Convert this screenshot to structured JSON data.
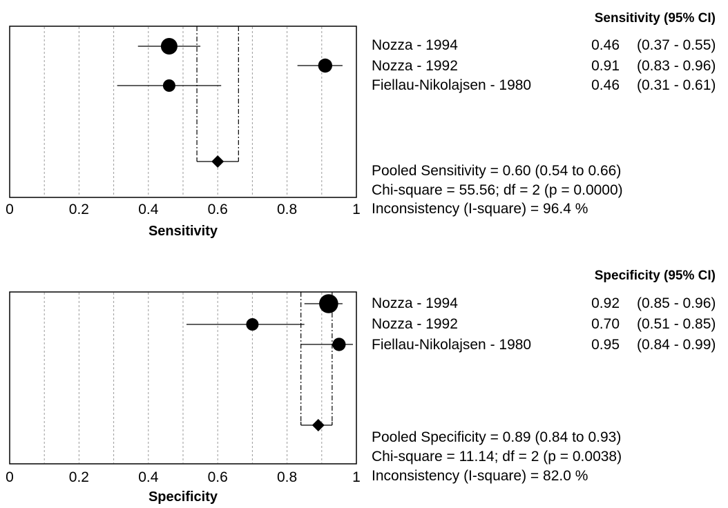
{
  "chart_data": [
    {
      "type": "forest",
      "title": "",
      "xlabel": "Sensitivity",
      "xlim": [
        0,
        1
      ],
      "xticks": [
        "0",
        "0.2",
        "0.4",
        "0.6",
        "0.8",
        "1"
      ],
      "column_header": "Sensitivity (95% CI)",
      "studies": [
        {
          "name": "Nozza - 1994",
          "estimate": 0.46,
          "estimate_label": "0.46",
          "ci": [
            0.37,
            0.55
          ],
          "ci_label": "(0.37 - 0.55)",
          "weight": 1.0
        },
        {
          "name": "Nozza - 1992",
          "estimate": 0.91,
          "estimate_label": "0.91",
          "ci": [
            0.83,
            0.96
          ],
          "ci_label": "(0.83 - 0.96)",
          "weight": 0.85
        },
        {
          "name": "Fiellau-Nikolajsen - 1980",
          "estimate": 0.46,
          "estimate_label": "0.46",
          "ci": [
            0.31,
            0.61
          ],
          "ci_label": "(0.31 - 0.61)",
          "weight": 0.75
        }
      ],
      "pooled": {
        "estimate": 0.6,
        "ci": [
          0.54,
          0.66
        ]
      },
      "stats": [
        "Pooled Sensitivity = 0.60 (0.54 to 0.66)",
        "Chi-square = 55.56; df =  2 (p = 0.0000)",
        "Inconsistency (I-square) = 96.4 %"
      ],
      "gridlines": "dotted vertical"
    },
    {
      "type": "forest",
      "title": "",
      "xlabel": "Specificity",
      "xlim": [
        0,
        1
      ],
      "xticks": [
        "0",
        "0.2",
        "0.4",
        "0.6",
        "0.8",
        "1"
      ],
      "column_header": "Specificity (95% CI)",
      "studies": [
        {
          "name": "Nozza - 1994",
          "estimate": 0.92,
          "estimate_label": "0.92",
          "ci": [
            0.85,
            0.96
          ],
          "ci_label": "(0.85 - 0.96)",
          "weight": 1.15
        },
        {
          "name": "Nozza - 1992",
          "estimate": 0.7,
          "estimate_label": "0.70",
          "ci": [
            0.51,
            0.85
          ],
          "ci_label": "(0.51 - 0.85)",
          "weight": 0.75
        },
        {
          "name": "Fiellau-Nikolajsen - 1980",
          "estimate": 0.95,
          "estimate_label": "0.95",
          "ci": [
            0.84,
            0.99
          ],
          "ci_label": "(0.84 - 0.99)",
          "weight": 0.8
        }
      ],
      "pooled": {
        "estimate": 0.89,
        "ci": [
          0.84,
          0.93
        ]
      },
      "stats": [
        "Pooled Specificity = 0.89 (0.84 to 0.93)",
        "Chi-square = 11.14; df =  2 (p = 0.0038)",
        "Inconsistency (I-square) = 82.0 %"
      ],
      "gridlines": "dotted vertical"
    }
  ]
}
